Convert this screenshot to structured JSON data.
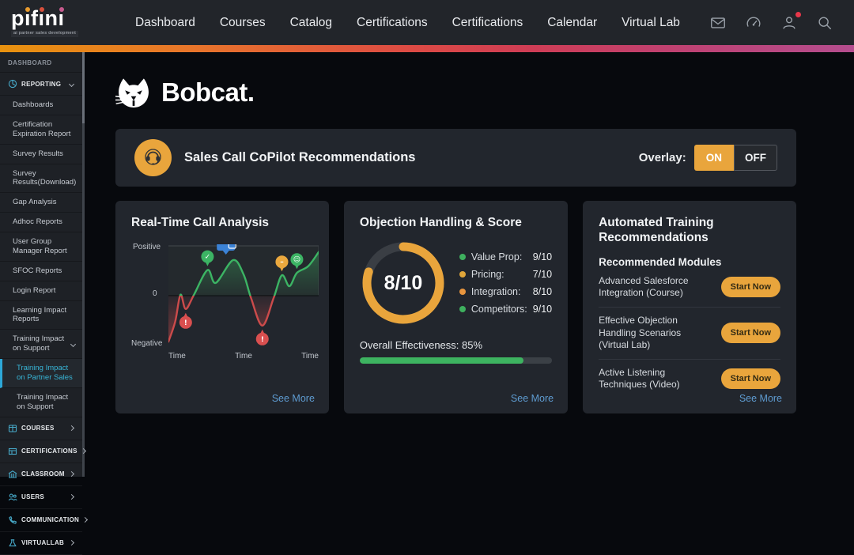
{
  "brand": {
    "name": "pifini",
    "display": [
      "p",
      "ı",
      "f",
      "ı",
      "n",
      "ı"
    ],
    "dot_colors": [
      "#e89b2e",
      "#d9503c",
      "#c75a8e"
    ],
    "tagline": "ai partner sales development"
  },
  "nav": {
    "items": [
      {
        "label": "Dashboard"
      },
      {
        "label": "Courses"
      },
      {
        "label": "Catalog"
      },
      {
        "label": "Certifications"
      },
      {
        "label": "Certifications"
      },
      {
        "label": "Calendar"
      },
      {
        "label": "Virtual Lab"
      }
    ],
    "icons": [
      "mail-icon",
      "gauge-icon",
      "profile-icon",
      "search-icon"
    ],
    "notification_color": "#e8374a"
  },
  "sidebar": {
    "items": [
      {
        "type": "label",
        "label": "DASHBOARD"
      },
      {
        "type": "section-open",
        "label": "REPORTING",
        "icon": "pie-chart"
      },
      {
        "type": "sub",
        "label": "Dashboards"
      },
      {
        "type": "sub",
        "label": "Certification Expiration Report"
      },
      {
        "type": "sub",
        "label": "Survey Results"
      },
      {
        "type": "sub",
        "label": "Survey Results(Download)"
      },
      {
        "type": "sub",
        "label": "Gap Analysis"
      },
      {
        "type": "sub",
        "label": "Adhoc Reports"
      },
      {
        "type": "sub",
        "label": "User Group Manager Report"
      },
      {
        "type": "sub",
        "label": "SFOC Reports"
      },
      {
        "type": "sub",
        "label": "Login Report"
      },
      {
        "type": "sub",
        "label": "Learning Impact Reports"
      },
      {
        "type": "sub-open",
        "label": "Training Impact on Support"
      },
      {
        "type": "sub-active",
        "label": "Training Impact on Partner Sales",
        "accent": "#38b6d8"
      },
      {
        "type": "sub-lvl2",
        "label": "Training Impact on Support"
      },
      {
        "type": "section",
        "label": "COURSES",
        "icon": "book"
      },
      {
        "type": "section",
        "label": "CERTIFICATIONS",
        "icon": "certificate"
      },
      {
        "type": "section",
        "label": "CLASSROOM",
        "icon": "building"
      },
      {
        "type": "section",
        "label": "USERS",
        "icon": "users"
      },
      {
        "type": "section",
        "label": "COMMUNICATION",
        "icon": "phone"
      },
      {
        "type": "section",
        "label": "VIRTUALLAB",
        "icon": "flask"
      }
    ],
    "icon_color": "#46a7c6"
  },
  "content": {
    "client_logo": "Bobcat.",
    "copilot": {
      "icon": "headset-icon",
      "icon_bg": "#e9a53c",
      "title": "Sales Call CoPilot Recommendations",
      "overlay_label": "Overlay:",
      "on_label": "ON",
      "off_label": "OFF",
      "active": "ON"
    },
    "cards": {
      "analysis": {
        "title": "Real-Time Call Analysis",
        "see_more": "See More"
      },
      "objection": {
        "title": "Objection Handling & Score",
        "see_more": "See More"
      },
      "training": {
        "title": "Automated Training Recommendations",
        "subtitle": "Recommended Modules",
        "modules": [
          {
            "name": "Advanced Salesforce Integration (Course)",
            "action": "Start Now"
          },
          {
            "name": "Effective Objection Handling Scenarios (Virtual Lab)",
            "action": "Start Now"
          },
          {
            "name": "Active Listening Techniques (Video)",
            "action": "Start Now"
          }
        ],
        "see_more": "See More"
      }
    }
  },
  "chart_data": [
    {
      "type": "line",
      "title": "Real-Time Call Analysis",
      "x_tick_labels": [
        "Time",
        "Time",
        "Time"
      ],
      "y_tick_labels": [
        "Positive",
        "0",
        "Negative"
      ],
      "y_range": [
        -1,
        1
      ],
      "grid": false,
      "positive_color": "#3cb464",
      "negative_color": "#cc4b4b",
      "series": [
        {
          "name": "call-sentiment",
          "points": [
            [
              0,
              -0.97
            ],
            [
              0.045,
              -0.55
            ],
            [
              0.08,
              0.02
            ],
            [
              0.115,
              -0.28
            ],
            [
              0.17,
              0.02
            ],
            [
              0.26,
              0.54
            ],
            [
              0.315,
              0.27
            ],
            [
              0.43,
              0.75
            ],
            [
              0.5,
              0.45
            ],
            [
              0.55,
              -0.05
            ],
            [
              0.625,
              -0.63
            ],
            [
              0.7,
              -0.05
            ],
            [
              0.755,
              0.43
            ],
            [
              0.805,
              0.2
            ],
            [
              0.855,
              0.48
            ],
            [
              0.93,
              0.62
            ],
            [
              1,
              0.92
            ]
          ]
        }
      ],
      "markers": [
        {
          "x": 0.115,
          "y": -0.28,
          "color": "#d94f4f",
          "icon": "alert"
        },
        {
          "x": 0.26,
          "y": 0.54,
          "color": "#3cb464",
          "icon": "positive"
        },
        {
          "x": 0.43,
          "y": 0.75,
          "color": "#3b82d6",
          "icon": "chat"
        },
        {
          "x": 0.625,
          "y": -0.63,
          "color": "#d94f4f",
          "icon": "negative"
        },
        {
          "x": 0.755,
          "y": 0.43,
          "color": "#eaa83e",
          "icon": "neutral"
        },
        {
          "x": 0.855,
          "y": 0.48,
          "color": "#3cb464",
          "icon": "smile"
        }
      ]
    },
    {
      "type": "donut-gauge",
      "title": "Objection Handling & Score",
      "value": 8,
      "max": 10,
      "pct": 80,
      "center_label": "8/10",
      "ring_color": "#e9a53c",
      "track_color": "#3a3e44",
      "legend": [
        {
          "label": "Value Prop:",
          "value": "9/10",
          "color": "#3eb05e"
        },
        {
          "label": "Pricing:",
          "value": "7/10",
          "color": "#e0a63a"
        },
        {
          "label": "Integration:",
          "value": "8/10",
          "color": "#e8953e"
        },
        {
          "label": "Competitors:",
          "value": "9/10",
          "color": "#3eb05e"
        }
      ],
      "effectiveness": {
        "label": "Overall Effectiveness: 85%",
        "pct": 85,
        "color": "#3db360"
      }
    }
  ]
}
